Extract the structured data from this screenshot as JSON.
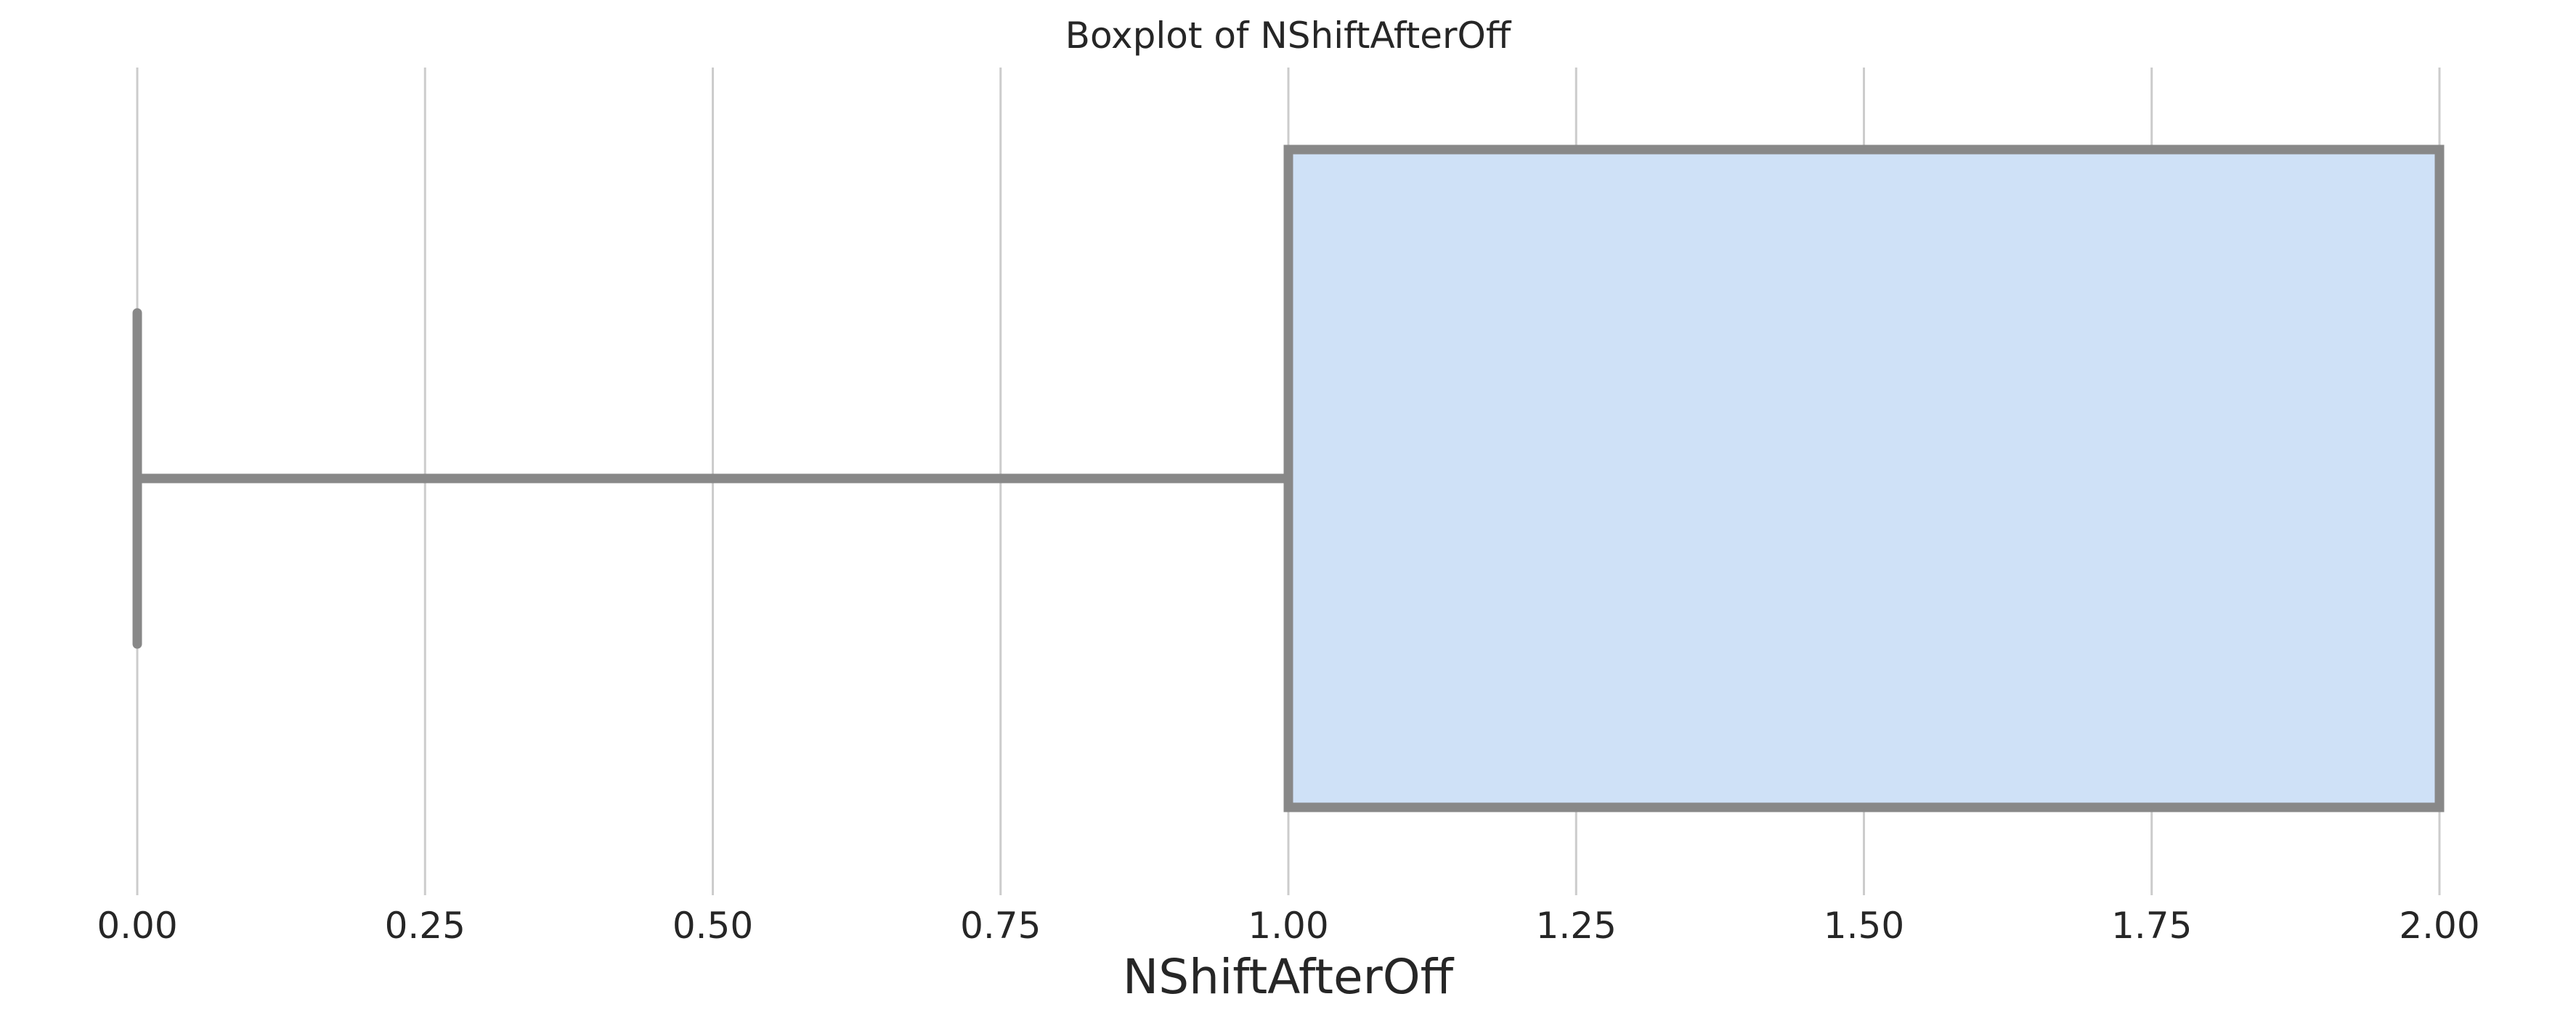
{
  "chart_data": {
    "type": "boxplot",
    "title": "Boxplot of NShiftAfterOff",
    "xlabel": "NShiftAfterOff",
    "ylabel": "",
    "orientation": "horizontal",
    "xlim": [
      0.0,
      2.0
    ],
    "xticks": [
      0.0,
      0.25,
      0.5,
      0.75,
      1.0,
      1.25,
      1.5,
      1.75,
      2.0
    ],
    "xtick_labels": [
      "0.00",
      "0.25",
      "0.50",
      "0.75",
      "1.00",
      "1.25",
      "1.50",
      "1.75",
      "2.00"
    ],
    "grid": "vertical",
    "box": {
      "whisker_low": 0.0,
      "q1": 1.0,
      "median": 2.0,
      "q3": 2.0,
      "whisker_high": 2.0
    },
    "colors": {
      "box_fill": "#cfe1f7",
      "box_edge": "#888888",
      "grid": "#cccccc",
      "text": "#262626"
    }
  }
}
